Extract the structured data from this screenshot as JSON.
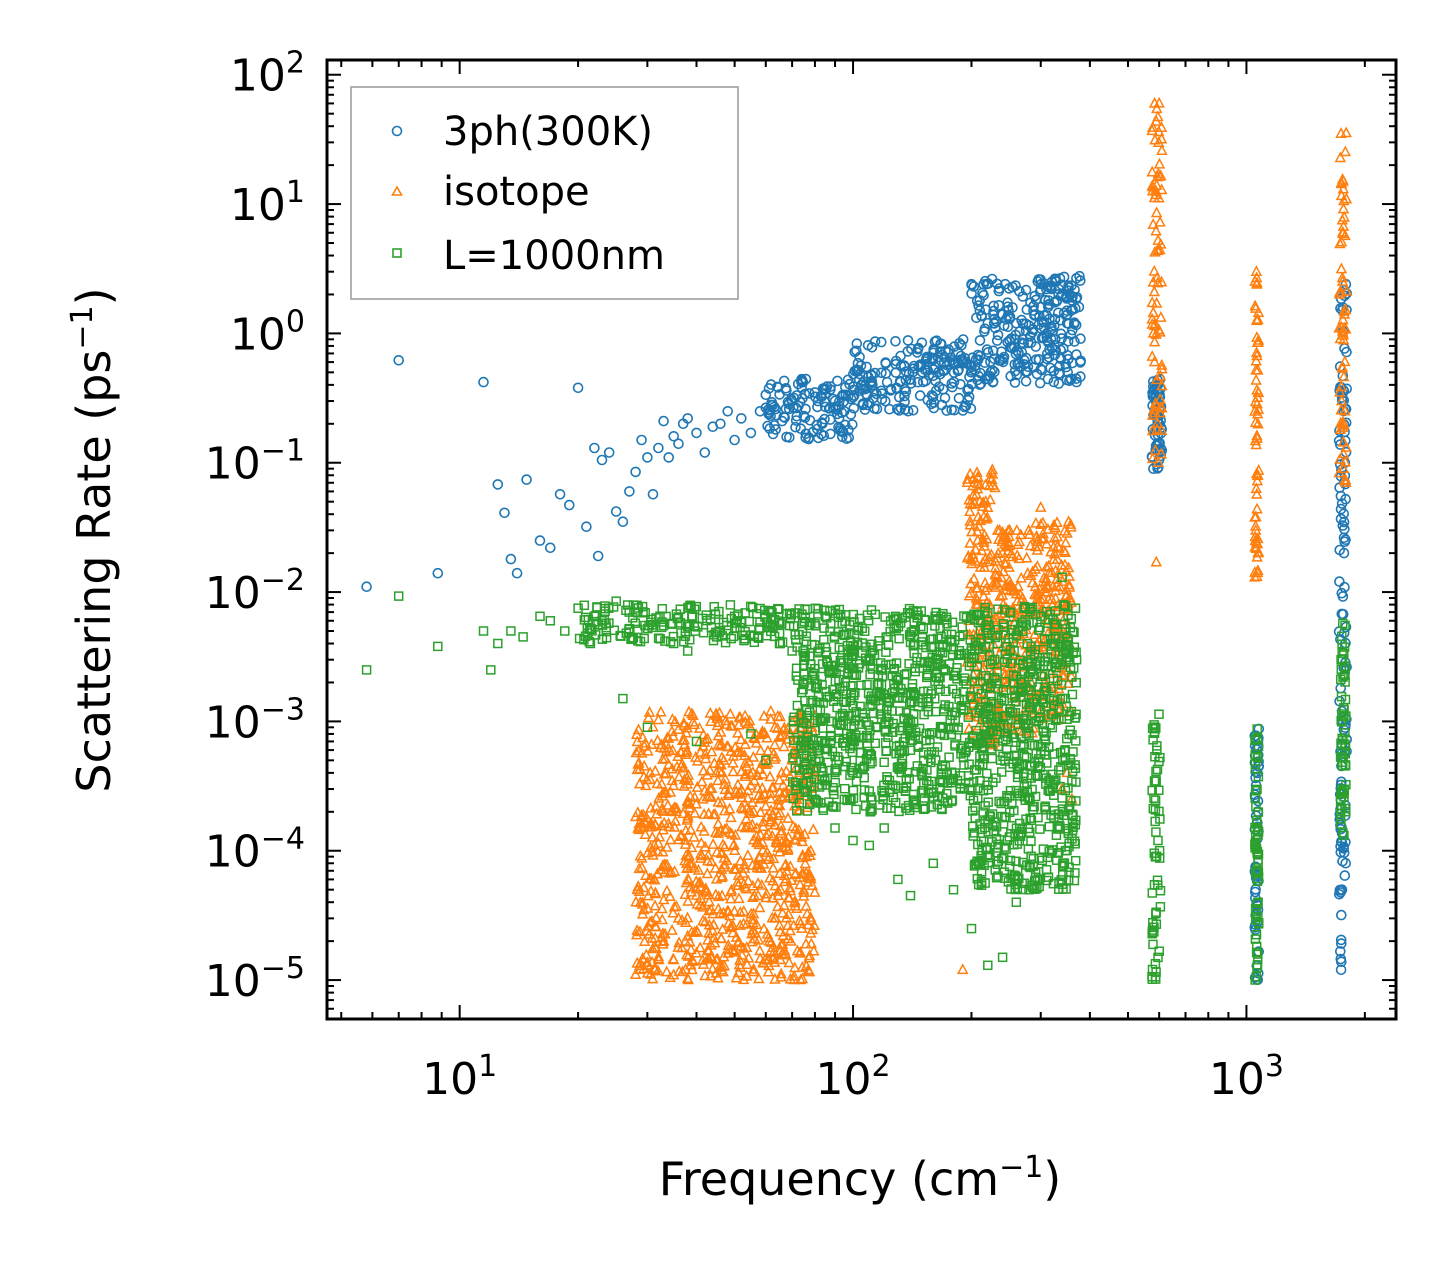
{
  "chart_data": {
    "type": "scatter",
    "title": "",
    "xlabel": "Frequency (cm",
    "xlabel_sup": "−1",
    "xlabel_end": ")",
    "ylabel": "Scattering Rate (ps",
    "ylabel_sup": "−1",
    "ylabel_end": ")",
    "xscale": "log",
    "yscale": "log",
    "xlim": [
      4.6,
      2400
    ],
    "ylim": [
      5e-06,
      130
    ],
    "xticks": [
      {
        "value": 10,
        "base": "10",
        "exp": "1"
      },
      {
        "value": 100,
        "base": "10",
        "exp": "2"
      },
      {
        "value": 1000,
        "base": "10",
        "exp": "3"
      }
    ],
    "yticks": [
      {
        "value": 1e-05,
        "base": "10",
        "exp": "−5"
      },
      {
        "value": 0.0001,
        "base": "10",
        "exp": "−4"
      },
      {
        "value": 0.001,
        "base": "10",
        "exp": "−3"
      },
      {
        "value": 0.01,
        "base": "10",
        "exp": "−2"
      },
      {
        "value": 0.1,
        "base": "10",
        "exp": "−1"
      },
      {
        "value": 1,
        "base": "10",
        "exp": "0"
      },
      {
        "value": 10,
        "base": "10",
        "exp": "1"
      },
      {
        "value": 100,
        "base": "10",
        "exp": "2"
      }
    ],
    "legend_position": "top-left",
    "series": [
      {
        "name": "3ph(300K)",
        "marker": "circle",
        "color": "#1f77b4",
        "x": [
          5.8,
          7.0,
          8.8,
          11.5,
          12.5,
          13.0,
          13.5,
          14.0,
          14.8,
          16.0,
          17.0,
          18.0,
          19.0,
          20.0,
          21.0,
          22.0,
          22.5,
          23.0,
          24.0,
          25.0,
          26.0,
          27.0,
          28.0,
          29.0,
          30.0,
          31.0,
          32.0,
          33.0,
          34.0,
          35.0,
          36.0,
          37.0,
          38.0,
          40.0,
          42.0,
          44.0,
          46.0,
          48.0,
          50.0,
          52.0,
          55.0,
          58.0,
          62.0,
          66.0,
          70.0,
          75.0,
          80.0,
          85.0,
          90.0,
          95.0,
          100,
          106,
          112,
          118,
          125,
          132,
          140,
          150,
          160,
          170,
          180,
          190,
          200,
          210,
          220,
          230,
          240,
          250,
          260,
          270,
          280,
          290,
          300,
          310,
          320,
          330,
          340,
          350,
          360,
          375,
          580,
          585,
          590,
          595,
          600,
          1740,
          1750,
          1760,
          1770,
          1780,
          1790
        ],
        "y": [
          0.011,
          0.62,
          0.014,
          0.42,
          0.068,
          0.041,
          0.018,
          0.014,
          0.074,
          0.025,
          0.022,
          0.057,
          0.047,
          0.38,
          0.032,
          0.13,
          0.019,
          0.105,
          0.12,
          0.042,
          0.035,
          0.06,
          0.085,
          0.15,
          0.11,
          0.057,
          0.13,
          0.21,
          0.11,
          0.16,
          0.14,
          0.2,
          0.22,
          0.17,
          0.12,
          0.19,
          0.2,
          0.25,
          0.15,
          0.22,
          0.17,
          0.25,
          0.28,
          0.21,
          0.3,
          0.23,
          0.35,
          0.27,
          0.3,
          0.25,
          0.32,
          0.28,
          0.4,
          0.36,
          0.37,
          0.42,
          0.44,
          0.5,
          0.47,
          0.52,
          0.58,
          0.6,
          0.55,
          1.5,
          1.2,
          1.1,
          1.4,
          1.3,
          1.2,
          0.9,
          1.15,
          1.4,
          2.6,
          2.2,
          2.5,
          1.8,
          2.0,
          1.9,
          1.8,
          1.6,
          0.09,
          0.25,
          0.3,
          0.35,
          0.2,
          1.2e-05,
          5e-05,
          0.001,
          0.02,
          0.1,
          2.4
        ],
        "bands": [
          {
            "x_range": [
              200,
              380
            ],
            "y_range": [
              0.4,
              2.8
            ]
          },
          {
            "x_range": [
              100,
              200
            ],
            "y_range": [
              0.25,
              0.9
            ]
          },
          {
            "x_range": [
              60,
              100
            ],
            "y_range": [
              0.15,
              0.45
            ]
          },
          {
            "x_range": [
              575,
              610
            ],
            "y_range": [
              0.09,
              0.45
            ]
          },
          {
            "x_range": [
              1050,
              1075
            ],
            "y_range": [
              1e-05,
              0.0009
            ]
          },
          {
            "x_range": [
              1720,
              1800
            ],
            "y_range": [
              1.2e-05,
              2.5
            ]
          }
        ]
      },
      {
        "name": "isotope",
        "marker": "triangle",
        "color": "#ff7f0e",
        "x": [
          28,
          30,
          33,
          36,
          40,
          45,
          50,
          55,
          60,
          65,
          70,
          75,
          80,
          190,
          210,
          240,
          250,
          280,
          300,
          310,
          330,
          340,
          350,
          360,
          580,
          590,
          600,
          1050,
          1060,
          1070,
          1740,
          1760,
          1780,
          1790
        ],
        "y": [
          1.1e-05,
          1.3e-05,
          2e-05,
          3e-05,
          4.5e-05,
          6e-05,
          0.0001,
          0.00015,
          0.00022,
          0.00035,
          0.0005,
          0.0008,
          0.0011,
          1.2e-05,
          0.05,
          0.02,
          0.03,
          0.003,
          0.045,
          0.01,
          0.006,
          0.0003,
          0.0004,
          0.00025,
          1.0,
          0.017,
          60,
          0.013,
          3.0,
          0.02,
          35,
          1.0,
          0.25,
          0.07
        ],
        "bands": [
          {
            "x_range": [
              28,
              80
            ],
            "y_range": [
              1e-05,
              0.0012
            ]
          },
          {
            "x_range": [
              195,
              230
            ],
            "y_range": [
              0.0006,
              0.09
            ]
          },
          {
            "x_range": [
              230,
              290
            ],
            "y_range": [
              0.0008,
              0.03
            ]
          },
          {
            "x_range": [
              290,
              360
            ],
            "y_range": [
              0.001,
              0.035
            ]
          },
          {
            "x_range": [
              575,
              610
            ],
            "y_range": [
              0.1,
              60
            ]
          },
          {
            "x_range": [
              1050,
              1075
            ],
            "y_range": [
              0.013,
              3.0
            ]
          },
          {
            "x_range": [
              1720,
              1800
            ],
            "y_range": [
              0.07,
              40
            ]
          }
        ]
      },
      {
        "name": "L=1000nm",
        "marker": "square",
        "color": "#2ca02c",
        "x": [
          5.8,
          7.0,
          8.8,
          11.5,
          12.0,
          12.5,
          13.5,
          14.5,
          16.0,
          17.0,
          18.5,
          20.0,
          21.5,
          22.0,
          23.0,
          25.0,
          26.0,
          28.0,
          30.0,
          33.0,
          35.0,
          38.0,
          40.0,
          45.0,
          50.0,
          55.0,
          60.0,
          65.0,
          70.0,
          75.0,
          80.0,
          85.0,
          90.0,
          95.0,
          100,
          110,
          120,
          130,
          140,
          160,
          180,
          200,
          220,
          240,
          260,
          280,
          300,
          320,
          340,
          360,
          370
        ],
        "y": [
          0.0025,
          0.0093,
          0.0038,
          0.005,
          0.0025,
          0.004,
          0.005,
          0.0045,
          0.0065,
          0.006,
          0.005,
          0.0075,
          0.004,
          0.0065,
          0.006,
          0.0085,
          0.0015,
          0.007,
          0.0009,
          0.0055,
          0.004,
          0.0035,
          0.0007,
          0.0045,
          0.0065,
          0.0008,
          0.0005,
          0.004,
          0.0035,
          0.0003,
          0.00025,
          0.0065,
          0.00015,
          0.00025,
          0.00012,
          0.00011,
          0.00015,
          6e-05,
          4.5e-05,
          8e-05,
          5e-05,
          2.5e-05,
          1.3e-05,
          1.5e-05,
          4e-05,
          5e-05,
          0.0065,
          0.004,
          0.013,
          0.0022,
          0.003
        ],
        "bands": [
          {
            "x_range": [
              20,
              70
            ],
            "y_range": [
              0.004,
              0.008
            ]
          },
          {
            "x_range": [
              70,
              200
            ],
            "y_range": [
              0.0002,
              0.0075
            ]
          },
          {
            "x_range": [
              200,
              370
            ],
            "y_range": [
              5e-05,
              0.008
            ]
          },
          {
            "x_range": [
              575,
              605
            ],
            "y_range": [
              1e-05,
              0.0014
            ]
          },
          {
            "x_range": [
              1050,
              1075
            ],
            "y_range": [
              1e-05,
              0.0009
            ]
          },
          {
            "x_range": [
              1730,
              1790
            ],
            "y_range": [
              0.00012,
              0.006
            ]
          }
        ]
      }
    ]
  }
}
